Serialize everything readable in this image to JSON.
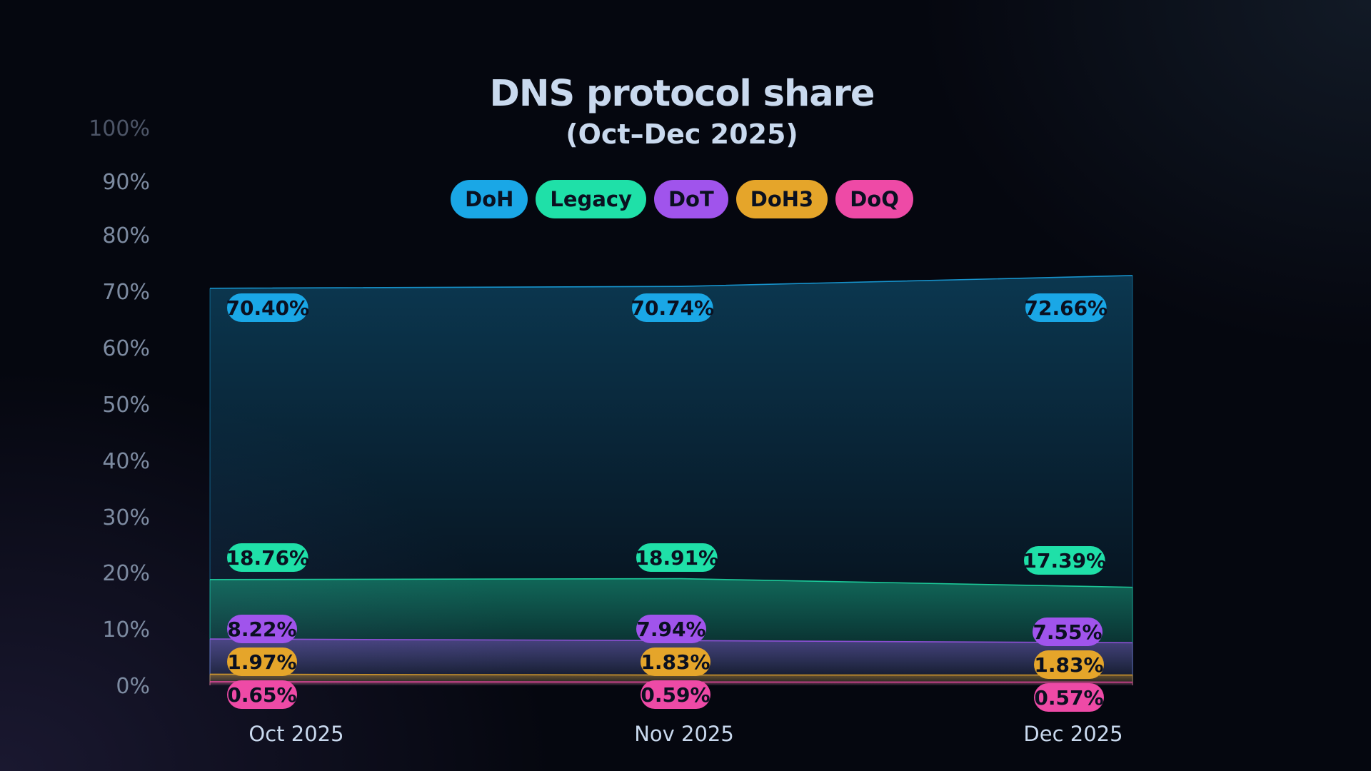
{
  "chart_data": {
    "type": "area",
    "title": "DNS protocol share",
    "subtitle": "(Oct–Dec 2025)",
    "categories": [
      "Oct 2025",
      "Nov 2025",
      "Dec 2025"
    ],
    "y_ticks": [
      "0%",
      "10%",
      "20%",
      "30%",
      "40%",
      "50%",
      "60%",
      "70%",
      "80%",
      "90%",
      "100%"
    ],
    "ylim": [
      0,
      100
    ],
    "grid": false,
    "legend_position": "top-center",
    "series": [
      {
        "name": "DoH",
        "color": "#1aa7e6",
        "values": [
          70.4,
          70.74,
          72.66
        ],
        "labels": [
          "70.40%",
          "70.74%",
          "72.66%"
        ]
      },
      {
        "name": "Legacy",
        "color": "#1fe0a8",
        "values": [
          18.76,
          18.91,
          17.39
        ],
        "labels": [
          "18.76%",
          "18.91%",
          "17.39%"
        ]
      },
      {
        "name": "DoT",
        "color": "#a054ec",
        "values": [
          8.22,
          7.94,
          7.55
        ],
        "labels": [
          "8.22%",
          "7.94%",
          "7.55%"
        ]
      },
      {
        "name": "DoH3",
        "color": "#e5a52a",
        "values": [
          1.97,
          1.83,
          1.83
        ],
        "labels": [
          "1.97%",
          "1.83%",
          "1.83%"
        ]
      },
      {
        "name": "DoQ",
        "color": "#ee4aa6",
        "values": [
          0.65,
          0.59,
          0.57
        ],
        "labels": [
          "0.65%",
          "0.59%",
          "0.57%"
        ]
      }
    ]
  }
}
